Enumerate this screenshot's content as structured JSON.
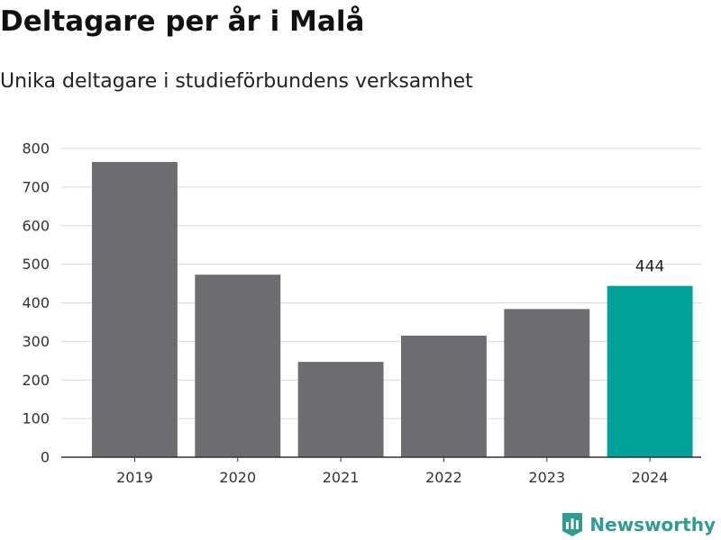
{
  "title": "Deltagare per år i Malå",
  "subtitle": "Unika deltagare i studieförbundens verksamhet",
  "brand": "Newsworthy",
  "colors": {
    "bar": "#6d6d71",
    "highlight": "#00a399",
    "grid": "#d9d9d9",
    "axis": "#333333",
    "brand": "#2e9c91"
  },
  "chart_data": {
    "type": "bar",
    "categories": [
      "2019",
      "2020",
      "2021",
      "2022",
      "2023",
      "2024"
    ],
    "values": [
      765,
      473,
      247,
      315,
      384,
      444
    ],
    "highlight_index": 5,
    "data_labels": [
      null,
      null,
      null,
      null,
      null,
      "444"
    ],
    "yticks": [
      0,
      100,
      200,
      300,
      400,
      500,
      600,
      700,
      800
    ],
    "ylim": [
      0,
      800
    ],
    "grid": true,
    "xlabel": "",
    "ylabel": ""
  }
}
